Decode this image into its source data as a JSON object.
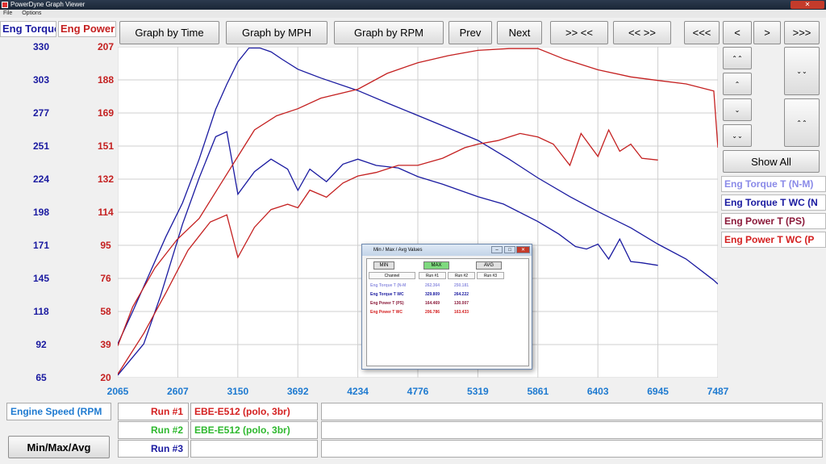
{
  "window": {
    "title": "PowerDyne Graph Viewer",
    "menu": [
      "File",
      "Options"
    ]
  },
  "header": {
    "left_label": "Eng Torque",
    "right_label": "Eng Power",
    "buttons": [
      "Graph by Time",
      "Graph by MPH",
      "Graph by RPM",
      "Prev",
      "Next",
      ">> <<",
      "<< >>",
      "<<<",
      "<",
      ">",
      ">>>"
    ]
  },
  "side": {
    "show_all": "Show All",
    "small_buttons": [
      "⌃⌃",
      "⌃",
      "⌄",
      "⌄⌄"
    ],
    "tall_buttons": [
      "⌄⌄",
      "⌃⌃"
    ]
  },
  "legend": [
    {
      "label": "Eng Torque T (N-M)",
      "color": "#8a8ae8"
    },
    {
      "label": "Eng Torque T WC (N",
      "color": "#1a1aa0"
    },
    {
      "label": "Eng Power T (PS)",
      "color": "#8b1a3a"
    },
    {
      "label": "Eng Power T WC (P",
      "color": "#d42020"
    }
  ],
  "colors": {
    "torque": "#1a1aa0",
    "power": "#c42020",
    "xaxis": "#1e7ad0",
    "run1": "#d42020",
    "run2": "#2eb82e",
    "run3": "#1a1aa0"
  },
  "bottom": {
    "x_channel": "Engine Speed (RPM",
    "runs": [
      {
        "label": "Run #1",
        "desc": "EBE-E512 (polo, 3br)"
      },
      {
        "label": "Run #2",
        "desc": "EBE-E512 (polo, 3br)"
      },
      {
        "label": "Run #3",
        "desc": ""
      }
    ],
    "minmax_button": "Min/Max/Avg"
  },
  "minmax_dialog": {
    "title": "Min / Max / Avg Values",
    "buttons": [
      "MIN",
      "MAX",
      "AVG"
    ],
    "headers": [
      "Channel",
      "Run #1",
      "Run #2",
      "Run #3"
    ],
    "rows": [
      {
        "channel": "Eng Torque T (N-M",
        "run1": "262.364",
        "run2": "250.181",
        "run3": "",
        "color": "#9090e0"
      },
      {
        "channel": "Eng Torque T WC",
        "run1": "329.809",
        "run2": "264.222",
        "run3": "",
        "color": "#1a1aa0"
      },
      {
        "channel": "Eng Power T (PS)",
        "run1": "164.469",
        "run2": "130.007",
        "run3": "",
        "color": "#8b1a3a"
      },
      {
        "channel": "Eng Power T WC",
        "run1": "206.786",
        "run2": "163.433",
        "run3": "",
        "color": "#d42020"
      }
    ]
  },
  "chart_data": {
    "type": "line",
    "title": "",
    "xlabel": "Engine Speed (RPM",
    "ylabel_left": "Eng Torque",
    "ylabel_right": "Eng Power",
    "x_ticks": [
      "2065",
      "2607",
      "3150",
      "3692",
      "4234",
      "4776",
      "5319",
      "5861",
      "6403",
      "6945",
      "7487"
    ],
    "y_left_ticks": [
      "330",
      "303",
      "277",
      "251",
      "224",
      "198",
      "171",
      "145",
      "118",
      "92",
      "65"
    ],
    "y_right_ticks": [
      "207",
      "188",
      "169",
      "151",
      "132",
      "114",
      "95",
      "76",
      "58",
      "39",
      "20"
    ],
    "xlim": [
      2065,
      7487
    ],
    "ylim_left": [
      65,
      330
    ],
    "ylim_right": [
      20,
      207
    ],
    "grid": true,
    "series": [
      {
        "axis": "left",
        "color": "#1a1aa0",
        "x": [
          2065,
          2200,
          2350,
          2500,
          2650,
          2800,
          2950,
          3050,
          3150,
          3250,
          3350,
          3450,
          3550,
          3692,
          3900,
          4234,
          4500,
          4776,
          5050,
          5319,
          5600,
          5861,
          6150,
          6403,
          6700,
          6945,
          7200,
          7450,
          7487
        ],
        "y": [
          92,
          118,
          148,
          178,
          205,
          240,
          280,
          300,
          318,
          329,
          329,
          326,
          320,
          312,
          305,
          295,
          285,
          275,
          265,
          255,
          240,
          225,
          210,
          198,
          185,
          172,
          160,
          143,
          140
        ]
      },
      {
        "axis": "left",
        "color": "#1a1aa0",
        "x": [
          2065,
          2300,
          2450,
          2650,
          2800,
          2950,
          3050,
          3150,
          3300,
          3450,
          3600,
          3692,
          3800,
          3950,
          4100,
          4234,
          4400,
          4600,
          4776,
          5000,
          5319,
          5550,
          5861,
          6050,
          6200,
          6300,
          6403,
          6500,
          6600,
          6700,
          6800,
          6945
        ],
        "y": [
          67,
          92,
          130,
          188,
          225,
          258,
          262,
          212,
          230,
          240,
          232,
          215,
          232,
          222,
          236,
          240,
          235,
          233,
          226,
          220,
          210,
          204,
          190,
          180,
          170,
          168,
          172,
          160,
          176,
          158,
          157,
          155
        ]
      },
      {
        "axis": "right",
        "color": "#c42020",
        "x": [
          2065,
          2200,
          2400,
          2600,
          2800,
          3000,
          3150,
          3300,
          3500,
          3692,
          3900,
          4234,
          4500,
          4776,
          5050,
          5319,
          5600,
          5861,
          6100,
          6403,
          6700,
          6945,
          7200,
          7450,
          7487
        ],
        "y": [
          38,
          60,
          82,
          98,
          110,
          130,
          145,
          160,
          168,
          172,
          178,
          183,
          192,
          198,
          202,
          205,
          206,
          206,
          200,
          194,
          190,
          188,
          186,
          182,
          150
        ]
      },
      {
        "axis": "right",
        "color": "#c42020",
        "x": [
          2065,
          2300,
          2500,
          2700,
          2900,
          3050,
          3150,
          3300,
          3450,
          3600,
          3692,
          3800,
          3950,
          4100,
          4234,
          4400,
          4600,
          4776,
          5000,
          5200,
          5319,
          5500,
          5700,
          5861,
          6000,
          6150,
          6250,
          6403,
          6500,
          6600,
          6700,
          6800,
          6945
        ],
        "y": [
          22,
          45,
          68,
          92,
          108,
          112,
          88,
          105,
          115,
          118,
          116,
          126,
          122,
          130,
          134,
          136,
          140,
          140,
          144,
          150,
          152,
          154,
          158,
          156,
          152,
          140,
          158,
          145,
          160,
          148,
          152,
          144,
          143
        ]
      }
    ]
  }
}
